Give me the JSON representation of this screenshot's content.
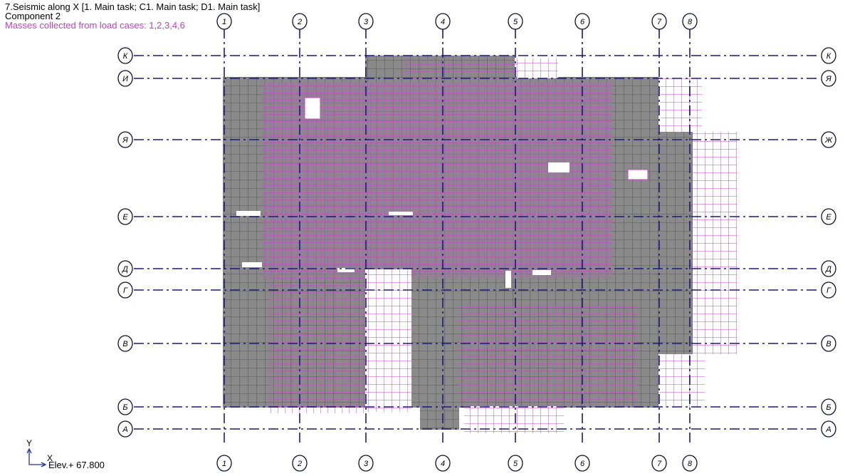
{
  "header": {
    "line1": "7.Seismic along X [1. Main task; C1. Main task; D1. Main task]",
    "line2": "Component 2",
    "line3": "Masses collected from load cases: 1,2,3,4,6"
  },
  "axes_vertical": [
    "1",
    "2",
    "3",
    "4",
    "5",
    "6",
    "7",
    "8"
  ],
  "axes_horizontal_left": [
    "К",
    "И",
    "Я",
    "Е",
    "Д",
    "Г",
    "В",
    "Б",
    "А"
  ],
  "axes_horizontal_right": [
    "К",
    "Я",
    "Ж",
    "Е",
    "Д",
    "Г",
    "В",
    "Б",
    "А"
  ],
  "coord": {
    "y": "Y",
    "x": "X"
  },
  "elevation": "Elev.+ 67.800",
  "colors": {
    "slab": "#8a8a8a",
    "mesh": "#c845c8",
    "grid": "#1a1a7a"
  }
}
